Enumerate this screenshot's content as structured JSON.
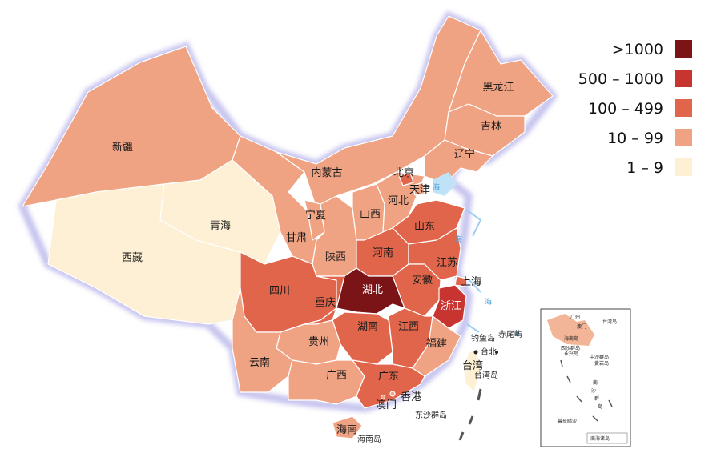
{
  "legend": [
    {
      "label": ">1000",
      "color": "#7a1417"
    },
    {
      "label": "500 – 1000",
      "color": "#c83430"
    },
    {
      "label": "100 – 499",
      "color": "#e0654a"
    },
    {
      "label": "10 – 99",
      "color": "#f0a383"
    },
    {
      "label": "1 – 9",
      "color": "#fdf0d4"
    }
  ],
  "provinces": [
    {
      "id": "xinjiang",
      "label": "新疆",
      "level": 3
    },
    {
      "id": "xizang",
      "label": "西藏",
      "level": 4
    },
    {
      "id": "qinghai",
      "label": "青海",
      "level": 4
    },
    {
      "id": "gansu",
      "label": "甘肃",
      "level": 3
    },
    {
      "id": "neimenggu",
      "label": "内蒙古",
      "level": 3
    },
    {
      "id": "heilongjiang",
      "label": "黑龙江",
      "level": 3
    },
    {
      "id": "jilin",
      "label": "吉林",
      "level": 3
    },
    {
      "id": "liaoning",
      "label": "辽宁",
      "level": 3
    },
    {
      "id": "ningxia",
      "label": "宁夏",
      "level": 3
    },
    {
      "id": "shaanxi",
      "label": "陕西",
      "level": 3
    },
    {
      "id": "shanxi",
      "label": "山西",
      "level": 3
    },
    {
      "id": "hebei",
      "label": "河北",
      "level": 3
    },
    {
      "id": "beijing",
      "label": "北京",
      "level": 2
    },
    {
      "id": "tianjin",
      "label": "天津",
      "level": 3
    },
    {
      "id": "shandong",
      "label": "山东",
      "level": 2
    },
    {
      "id": "henan",
      "label": "河南",
      "level": 2
    },
    {
      "id": "jiangsu",
      "label": "江苏",
      "level": 2
    },
    {
      "id": "anhui",
      "label": "安徽",
      "level": 2
    },
    {
      "id": "shanghai",
      "label": "上海",
      "level": 2
    },
    {
      "id": "zhejiang",
      "label": "浙江",
      "level": 1
    },
    {
      "id": "hubei",
      "label": "湖北",
      "level": 0
    },
    {
      "id": "sichuan",
      "label": "四川",
      "level": 2
    },
    {
      "id": "chongqing",
      "label": "重庆",
      "level": 2
    },
    {
      "id": "hunan",
      "label": "湖南",
      "level": 2
    },
    {
      "id": "jiangxi",
      "label": "江西",
      "level": 2
    },
    {
      "id": "fujian",
      "label": "福建",
      "level": 3
    },
    {
      "id": "guizhou",
      "label": "贵州",
      "level": 3
    },
    {
      "id": "yunnan",
      "label": "云南",
      "level": 3
    },
    {
      "id": "guangxi",
      "label": "广西",
      "level": 3
    },
    {
      "id": "guangdong",
      "label": "广东",
      "level": 2
    },
    {
      "id": "hainan",
      "label": "海南",
      "level": 3
    },
    {
      "id": "taiwan",
      "label": "台湾",
      "level": 4
    },
    {
      "id": "hongkong",
      "label": "香港",
      "level": 3
    },
    {
      "id": "macao",
      "label": "澳门",
      "level": 3
    }
  ],
  "place_labels": {
    "diaoyudao": "钓鱼岛",
    "chiweiyu": "赤尾屿",
    "taibei": "台北",
    "taiwandao": "台湾岛",
    "dongsha": "东沙群岛",
    "hainandao": "海南岛",
    "sea_label": "海"
  },
  "inset": {
    "labels": [
      "广州",
      "台湾岛",
      "澳门",
      "海南岛",
      "西沙群岛",
      "永兴岛",
      "中沙群岛",
      "黄岩岛",
      "南",
      "沙",
      "群",
      "岛",
      "曾母暗沙"
    ],
    "scale_text": "南海诸岛"
  }
}
